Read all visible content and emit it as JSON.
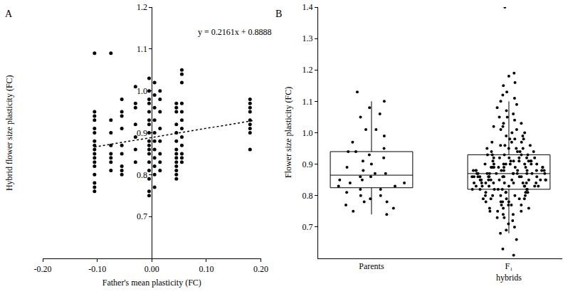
{
  "chart_data": [
    {
      "type": "scatter",
      "title": "A",
      "x_label": "Father's mean plasticity (FC)",
      "y_label": "Hybrid flower size plasticity (FC)",
      "color": "#000000",
      "marker": "circle",
      "columns": [
        {
          "x": -0.105,
          "values": [
            1.09,
            0.95,
            0.94,
            0.93,
            0.91,
            0.9,
            0.88,
            0.87,
            0.86,
            0.85,
            0.84,
            0.83,
            0.82,
            0.8,
            0.78,
            0.77,
            0.76
          ]
        },
        {
          "x": -0.075,
          "values": [
            1.09,
            0.93,
            0.9,
            0.87,
            0.85,
            0.84,
            0.83,
            0.81
          ]
        },
        {
          "x": -0.055,
          "values": [
            0.98,
            0.95,
            0.94,
            0.91,
            0.87,
            0.85,
            0.82,
            0.81,
            0.8
          ]
        },
        {
          "x": -0.03,
          "values": [
            1.01,
            0.97,
            0.96,
            0.92,
            0.89,
            0.86,
            0.83
          ]
        },
        {
          "x": -0.005,
          "values": [
            1.03,
            1.0,
            0.98,
            0.97,
            0.95,
            0.93,
            0.92,
            0.9,
            0.88,
            0.87,
            0.86,
            0.85,
            0.83,
            0.81,
            0.79,
            0.76,
            0.75
          ]
        },
        {
          "x": 0.005,
          "values": [
            1.02,
            0.99,
            0.96,
            0.93,
            0.9,
            0.88,
            0.86,
            0.84,
            0.82,
            0.8,
            0.77
          ]
        },
        {
          "x": 0.015,
          "values": [
            1.0,
            0.98,
            0.95,
            0.91,
            0.88,
            0.85,
            0.83,
            0.81
          ]
        },
        {
          "x": 0.045,
          "values": [
            0.97,
            0.96,
            0.95,
            0.92,
            0.9,
            0.88,
            0.86,
            0.85,
            0.84,
            0.83,
            0.82,
            0.81,
            0.8,
            0.79
          ]
        },
        {
          "x": 0.055,
          "values": [
            1.05,
            1.04,
            1.02,
            0.97,
            0.95,
            0.93,
            0.91,
            0.89,
            0.87,
            0.85,
            0.84,
            0.83
          ]
        },
        {
          "x": 0.18,
          "values": [
            0.98,
            0.97,
            0.96,
            0.95,
            0.93,
            0.92,
            0.91,
            0.9,
            0.86
          ]
        }
      ],
      "trend": {
        "x": [
          -0.105,
          0.185
        ],
        "y": [
          0.866,
          0.929
        ],
        "line_style": "dotted"
      },
      "annotation": "y = 0.2161x + 0.8888",
      "xlim": [
        -0.2,
        0.2
      ],
      "xticks": [
        {
          "value": -0.2,
          "label": "-0.20"
        },
        {
          "value": -0.1,
          "label": "-0.10"
        },
        {
          "value": 0,
          "label": "0.00"
        },
        {
          "value": 0.1,
          "label": "0.10"
        },
        {
          "value": 0.2,
          "label": "0.20"
        }
      ],
      "ylim": [
        0.6,
        1.2
      ],
      "yticks": [
        0.7,
        0.8,
        0.9,
        {
          "value": 1,
          "label": "1.0"
        },
        1.1,
        1.2
      ],
      "grid": false
    },
    {
      "type": "box",
      "title": "B",
      "y_label": "Flower size plasticity (FC)",
      "color": "#000000",
      "marker": "circle",
      "categories": [
        "Parents",
        "F₁ hybrids"
      ],
      "values": [
        [
          1.13,
          1.1,
          1.08,
          1.06,
          1.05,
          1.01,
          1.01,
          0.99,
          0.97,
          0.95,
          0.94,
          0.94,
          0.93,
          0.92,
          0.91,
          0.9,
          0.89,
          0.88,
          0.87,
          0.87,
          0.86,
          0.86,
          0.85,
          0.85,
          0.84,
          0.84,
          0.83,
          0.83,
          0.82,
          0.82,
          0.81,
          0.8,
          0.8,
          0.79,
          0.78,
          0.78,
          0.77,
          0.76,
          0.75,
          0.74
        ],
        [
          1.4,
          1.19,
          1.18,
          1.16,
          1.15,
          1.13,
          1.12,
          1.11,
          1.1,
          1.09,
          1.08,
          1.07,
          1.06,
          1.05,
          1.05,
          1.04,
          1.03,
          1.03,
          1.02,
          1.02,
          1.01,
          1.01,
          1.0,
          1.0,
          0.99,
          0.99,
          0.98,
          0.98,
          0.98,
          0.97,
          0.97,
          0.97,
          0.96,
          0.96,
          0.96,
          0.95,
          0.95,
          0.95,
          0.95,
          0.94,
          0.94,
          0.94,
          0.94,
          0.93,
          0.93,
          0.93,
          0.93,
          0.93,
          0.92,
          0.92,
          0.92,
          0.92,
          0.92,
          0.92,
          0.91,
          0.91,
          0.91,
          0.91,
          0.91,
          0.91,
          0.91,
          0.9,
          0.9,
          0.9,
          0.9,
          0.9,
          0.9,
          0.9,
          0.9,
          0.89,
          0.89,
          0.89,
          0.89,
          0.89,
          0.89,
          0.89,
          0.89,
          0.89,
          0.88,
          0.88,
          0.88,
          0.88,
          0.88,
          0.88,
          0.88,
          0.88,
          0.88,
          0.88,
          0.87,
          0.87,
          0.87,
          0.87,
          0.87,
          0.87,
          0.87,
          0.87,
          0.87,
          0.87,
          0.87,
          0.86,
          0.86,
          0.86,
          0.86,
          0.86,
          0.86,
          0.86,
          0.86,
          0.86,
          0.86,
          0.86,
          0.85,
          0.85,
          0.85,
          0.85,
          0.85,
          0.85,
          0.85,
          0.85,
          0.85,
          0.85,
          0.84,
          0.84,
          0.84,
          0.84,
          0.84,
          0.84,
          0.84,
          0.84,
          0.84,
          0.83,
          0.83,
          0.83,
          0.83,
          0.83,
          0.83,
          0.83,
          0.83,
          0.82,
          0.82,
          0.82,
          0.82,
          0.82,
          0.82,
          0.82,
          0.81,
          0.81,
          0.81,
          0.81,
          0.81,
          0.81,
          0.8,
          0.8,
          0.8,
          0.8,
          0.8,
          0.79,
          0.79,
          0.79,
          0.79,
          0.79,
          0.78,
          0.78,
          0.78,
          0.78,
          0.77,
          0.77,
          0.77,
          0.77,
          0.76,
          0.76,
          0.76,
          0.75,
          0.75,
          0.75,
          0.74,
          0.74,
          0.73,
          0.73,
          0.72,
          0.71,
          0.7,
          0.69,
          0.68,
          0.66,
          0.63,
          0.61
        ]
      ],
      "boxes": [
        {
          "q1": 0.825,
          "median": 0.865,
          "q3": 0.94,
          "lowerfence": 0.74,
          "upperfence": 1.1
        },
        {
          "q1": 0.82,
          "median": 0.87,
          "q3": 0.93,
          "lowerfence": 0.68,
          "upperfence": 1.1
        }
      ],
      "ylim": [
        0.6,
        1.4
      ],
      "yticks": [
        0.7,
        0.8,
        0.9,
        {
          "value": 1,
          "label": "1.0"
        },
        1.1,
        1.2,
        1.3,
        1.4
      ],
      "grid": false
    }
  ]
}
